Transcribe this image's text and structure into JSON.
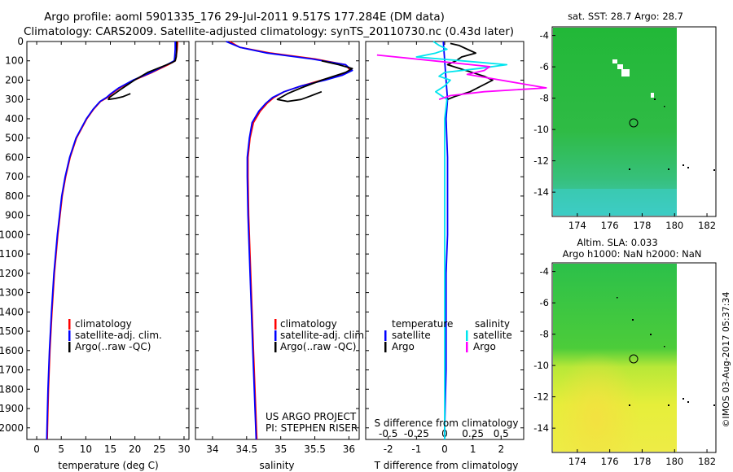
{
  "header": {
    "line1": "Argo profile: aoml 5901335_176 29-Jul-2011 9.517S 177.284E (DM data)",
    "line2": "Climatology: CARS2009. Satellite-adjusted climatology: synTS_20110730.nc (0.43d later)"
  },
  "credits": {
    "project": "US ARGO PROJECT",
    "pi": "PI: STEPHEN RISER",
    "stamp": "©IMOS 03-Aug-2017 05:37:34"
  },
  "colors": {
    "climatology": "#ff0000",
    "satellite": "#0000ff",
    "argo": "#000000",
    "sal_satellite": "#00e5ee",
    "sal_argo": "#ff00ff"
  },
  "chart_data": [
    {
      "type": "line",
      "id": "temperature",
      "xlabel": "temperature (deg C)",
      "ylabel": "",
      "xlim": [
        -2,
        31
      ],
      "ylim": [
        2060,
        0
      ],
      "xticks": [
        0,
        5,
        10,
        15,
        20,
        25,
        30
      ],
      "yticks": [
        0,
        100,
        200,
        300,
        400,
        500,
        600,
        700,
        800,
        900,
        1000,
        1100,
        1200,
        1300,
        1400,
        1500,
        1600,
        1700,
        1800,
        1900,
        2000
      ],
      "legend": [
        "climatology",
        "satellite-adj. clim.",
        "Argo(..raw -QC)"
      ],
      "series": [
        {
          "name": "climatology",
          "color": "#ff0000",
          "depth": [
            0,
            40,
            80,
            100,
            120,
            160,
            200,
            240,
            270,
            290,
            310,
            350,
            400,
            500,
            600,
            700,
            800,
            1000,
            1200,
            1400,
            1600,
            1800,
            2000,
            2060
          ],
          "values": [
            28.7,
            28.6,
            28.4,
            28.2,
            26.8,
            23.5,
            19.8,
            16.9,
            15.3,
            14.4,
            13.0,
            11.6,
            10.2,
            8.1,
            6.8,
            5.9,
            5.2,
            4.3,
            3.6,
            3.1,
            2.7,
            2.4,
            2.2,
            2.15
          ]
        },
        {
          "name": "satellite-adj. clim.",
          "color": "#0000ff",
          "depth": [
            0,
            40,
            80,
            100,
            120,
            160,
            200,
            240,
            270,
            290,
            310,
            350,
            400,
            500,
            600,
            700,
            800,
            1000,
            1200,
            1400,
            1600,
            1800,
            2000,
            2060
          ],
          "values": [
            28.2,
            28.2,
            28.1,
            28.0,
            26.5,
            23.3,
            19.6,
            16.7,
            15.1,
            14.2,
            12.9,
            11.5,
            10.1,
            8.0,
            6.7,
            5.8,
            5.1,
            4.2,
            3.5,
            3.0,
            2.6,
            2.3,
            2.1,
            2.05
          ]
        },
        {
          "name": "Argo(..raw -QC)",
          "color": "#000000",
          "depth": [
            0,
            40,
            80,
            100,
            110,
            130,
            160,
            200,
            250,
            290,
            300,
            295,
            285,
            270
          ],
          "values": [
            28.5,
            28.5,
            28.4,
            28.2,
            27.5,
            25.5,
            22.6,
            19.9,
            17.0,
            14.8,
            14.6,
            16.0,
            17.6,
            19.1
          ]
        }
      ]
    },
    {
      "type": "line",
      "id": "salinity",
      "xlabel": "salinity",
      "ylabel": "",
      "xlim": [
        33.75,
        36.15
      ],
      "ylim": [
        2060,
        0
      ],
      "xticks": [
        34,
        34.5,
        35,
        35.5,
        36
      ],
      "xticklabels": [
        "34",
        "34.5",
        "35",
        "35.5",
        "36"
      ],
      "legend": [
        "climatology",
        "satellite-adj. clim.",
        "Argo(..raw -QC)"
      ],
      "series": [
        {
          "name": "climatology",
          "color": "#ff0000",
          "depth": [
            0,
            30,
            60,
            90,
            120,
            150,
            175,
            200,
            230,
            260,
            290,
            320,
            360,
            420,
            500,
            600,
            700,
            900,
            1200,
            1600,
            2060
          ],
          "values": [
            34.25,
            34.4,
            34.85,
            35.5,
            35.95,
            36.02,
            35.85,
            35.6,
            35.3,
            35.05,
            34.9,
            34.8,
            34.7,
            34.6,
            34.55,
            34.52,
            34.52,
            34.53,
            34.56,
            34.6,
            34.65
          ]
        },
        {
          "name": "satellite-adj. clim.",
          "color": "#0000ff",
          "depth": [
            0,
            30,
            60,
            90,
            120,
            150,
            175,
            200,
            230,
            260,
            290,
            320,
            360,
            420,
            500,
            600,
            700,
            900,
            1200,
            1600,
            2060
          ],
          "values": [
            34.2,
            34.4,
            34.8,
            35.45,
            35.95,
            36.05,
            35.9,
            35.65,
            35.3,
            35.05,
            34.88,
            34.78,
            34.68,
            34.58,
            34.54,
            34.51,
            34.51,
            34.52,
            34.55,
            34.59,
            34.64
          ]
        },
        {
          "name": "Argo(..raw -QC)",
          "color": "#000000",
          "depth": [
            100,
            120,
            140,
            160,
            200,
            240,
            270,
            300,
            310,
            300,
            280,
            260
          ],
          "values": [
            35.6,
            35.85,
            36.05,
            35.95,
            35.6,
            35.3,
            35.1,
            34.95,
            35.1,
            35.3,
            35.45,
            35.6
          ]
        }
      ]
    },
    {
      "type": "line",
      "id": "differences",
      "xlabel": "T difference from climatology",
      "xlabel2": "S difference from climatology",
      "ylabel": "",
      "xlim": [
        -2.8,
        2.8
      ],
      "ylim": [
        2060,
        0
      ],
      "xticks": [
        -2,
        -1,
        0,
        1,
        2
      ],
      "xticks2": [
        -0.5,
        -0.25,
        0,
        0.25,
        0.5
      ],
      "xticks2labels": [
        "-0.5",
        "-0.25",
        "0",
        "0.25",
        "0.5"
      ],
      "legend_temperature_title": "temperature",
      "legend_salinity_title": "salinity",
      "legend": [
        "satellite",
        "Argo",
        "satellite",
        "Argo"
      ],
      "series": [
        {
          "name": "temperature satellite",
          "color": "#0000ff",
          "depth": [
            0,
            100,
            200,
            300,
            400,
            600,
            800,
            1000,
            1200,
            1500,
            1700,
            2000,
            2060
          ],
          "values": [
            -0.05,
            0.0,
            0.05,
            0.1,
            0.05,
            0.1,
            0.1,
            0.1,
            0.05,
            0.05,
            0.05,
            0.0,
            0.0
          ]
        },
        {
          "name": "temperature Argo",
          "color": "#000000",
          "depth": [
            10,
            20,
            40,
            60,
            80,
            100,
            120,
            180,
            200,
            260,
            285,
            300
          ],
          "values": [
            0.2,
            0.5,
            0.8,
            1.1,
            0.6,
            0.4,
            0.1,
            1.4,
            1.7,
            0.9,
            0.35,
            0.1
          ]
        },
        {
          "name": "salinity satellite",
          "color": "#00e5ee",
          "depth": [
            0,
            20,
            40,
            60,
            80,
            100,
            120,
            140,
            160,
            180,
            200,
            230,
            260,
            300,
            400,
            600,
            800,
            1000,
            1500,
            2060
          ],
          "values": [
            -0.1,
            -0.05,
            0.02,
            -0.08,
            -0.25,
            0.15,
            0.55,
            0.3,
            0.0,
            -0.05,
            0.05,
            0.0,
            -0.08,
            0.02,
            0.0,
            0.0,
            0.0,
            0.0,
            0.0,
            0.0
          ]
        },
        {
          "name": "salinity Argo",
          "color": "#ff00ff",
          "depth": [
            70,
            100,
            130,
            150,
            170,
            240,
            260,
            280,
            300
          ],
          "values": [
            -0.6,
            -0.1,
            0.4,
            0.35,
            0.2,
            0.9,
            0.35,
            0.05,
            -0.05
          ]
        }
      ]
    },
    {
      "type": "heatmap",
      "id": "sst_map",
      "title": "sat. SST: 28.7 Argo: 28.7",
      "xlim": [
        172.5,
        182.5
      ],
      "ylim": [
        -15.5,
        -3.5
      ],
      "xticks": [
        174,
        176,
        178,
        180,
        182
      ],
      "yticks": [
        -4,
        -6,
        -8,
        -10,
        -12,
        -14
      ],
      "argo_position": [
        177.284,
        -9.517
      ]
    },
    {
      "type": "heatmap",
      "id": "sla_map",
      "title": "Altim. SLA: 0.033",
      "subtitle": "Argo h1000: NaN h2000: NaN",
      "xlim": [
        172.5,
        182.5
      ],
      "ylim": [
        -15.5,
        -3.5
      ],
      "xticks": [
        174,
        176,
        178,
        180,
        182
      ],
      "yticks": [
        -4,
        -6,
        -8,
        -10,
        -12,
        -14
      ],
      "argo_position": [
        177.284,
        -9.517
      ]
    }
  ]
}
